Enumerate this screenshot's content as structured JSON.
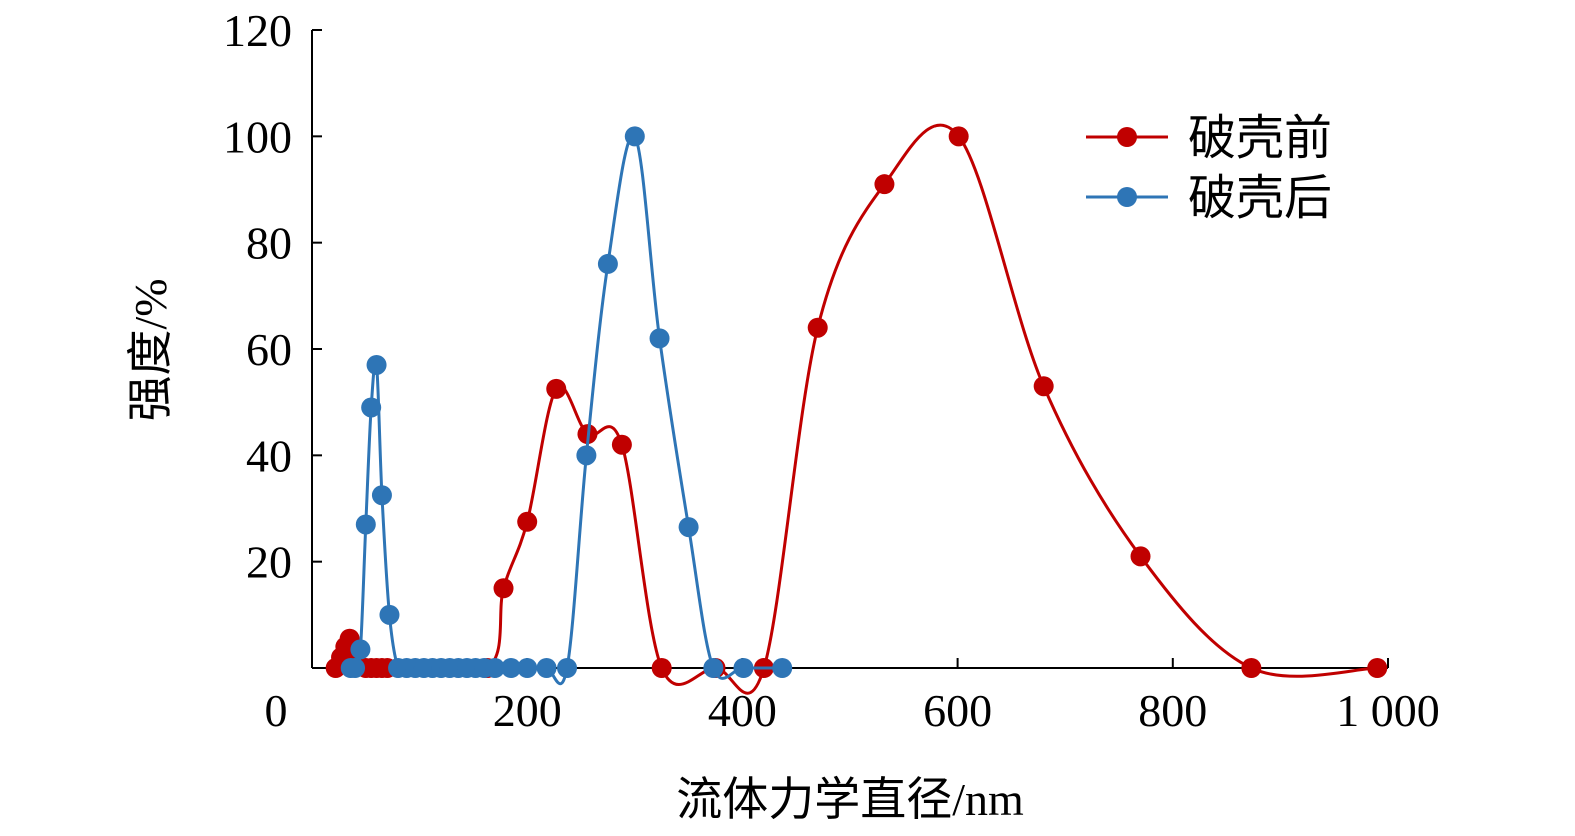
{
  "chart_data": {
    "type": "line",
    "xlabel": "流体力学直径/nm",
    "ylabel": "强度/%",
    "xlim": [
      0,
      1000
    ],
    "ylim": [
      0,
      120
    ],
    "x_ticks": [
      0,
      200,
      400,
      600,
      800,
      1000
    ],
    "x_tick_labels": [
      "0",
      "200",
      "400",
      "600",
      "800",
      "1 000"
    ],
    "y_ticks": [
      20,
      40,
      60,
      80,
      100,
      120
    ],
    "y_tick_labels": [
      "20",
      "40",
      "60",
      "80",
      "100",
      "120"
    ],
    "grid": false,
    "legend_position": "top-right",
    "series": [
      {
        "name": "破壳前",
        "color": "#c00000",
        "x": [
          22,
          27,
          31,
          35,
          39,
          43,
          50,
          55,
          60,
          65,
          70,
          163,
          178,
          200,
          227,
          256,
          288,
          325,
          375,
          420,
          470,
          532,
          601,
          680,
          770,
          873,
          990
        ],
        "y": [
          0,
          2,
          4,
          5.5,
          3,
          0.5,
          0,
          0,
          0,
          0,
          0,
          0,
          15,
          27.5,
          52.5,
          44,
          42,
          0,
          0,
          0,
          64,
          91,
          100,
          53,
          21,
          0,
          0
        ]
      },
      {
        "name": "破壳后",
        "color": "#2e75b6",
        "x": [
          36,
          40,
          45,
          50,
          55,
          60,
          65,
          72,
          80,
          88,
          96,
          104,
          112,
          120,
          128,
          136,
          144,
          152,
          160,
          170,
          185,
          200,
          218,
          237,
          255,
          275,
          300,
          323,
          350,
          373,
          401,
          437
        ],
        "y": [
          0,
          0,
          3.5,
          27,
          49,
          57,
          32.5,
          10,
          0,
          0,
          0,
          0,
          0,
          0,
          0,
          0,
          0,
          0,
          0,
          0,
          0,
          0,
          0,
          0,
          40,
          76,
          100,
          62,
          26.5,
          0,
          0,
          0
        ]
      }
    ]
  }
}
